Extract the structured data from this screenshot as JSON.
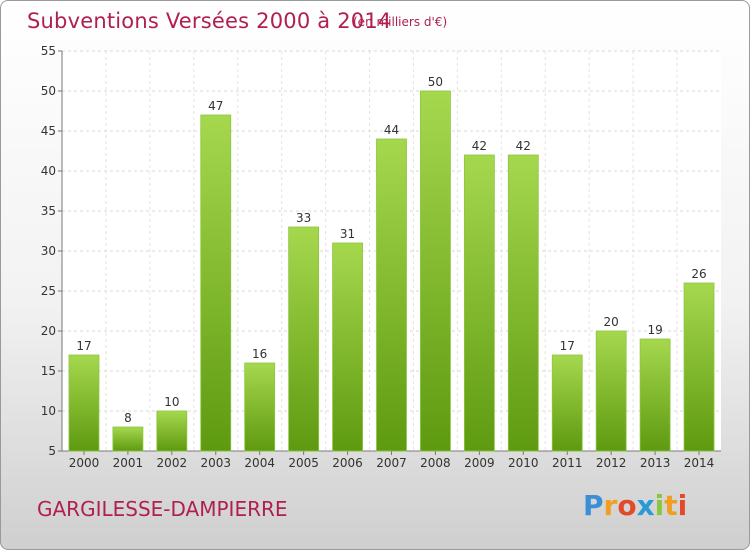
{
  "chart_data": {
    "type": "bar",
    "title": "Subventions Versées 2000 à 2014",
    "subtitle": "(en milliers d'€)",
    "categories": [
      "2000",
      "2001",
      "2002",
      "2003",
      "2004",
      "2005",
      "2006",
      "2007",
      "2008",
      "2009",
      "2010",
      "2011",
      "2012",
      "2013",
      "2014"
    ],
    "values": [
      17,
      8,
      10,
      47,
      16,
      33,
      31,
      44,
      50,
      42,
      42,
      17,
      20,
      19,
      26
    ],
    "ylim": [
      5,
      55
    ],
    "yticks": [
      5,
      10,
      15,
      20,
      25,
      30,
      35,
      40,
      45,
      50,
      55
    ],
    "grid": true,
    "bar_color_top": "#a6d84e",
    "bar_color_bottom": "#5e9a10"
  },
  "footer": {
    "place": "GARGILESSE-DAMPIERRE",
    "logo": "Proxiti"
  }
}
